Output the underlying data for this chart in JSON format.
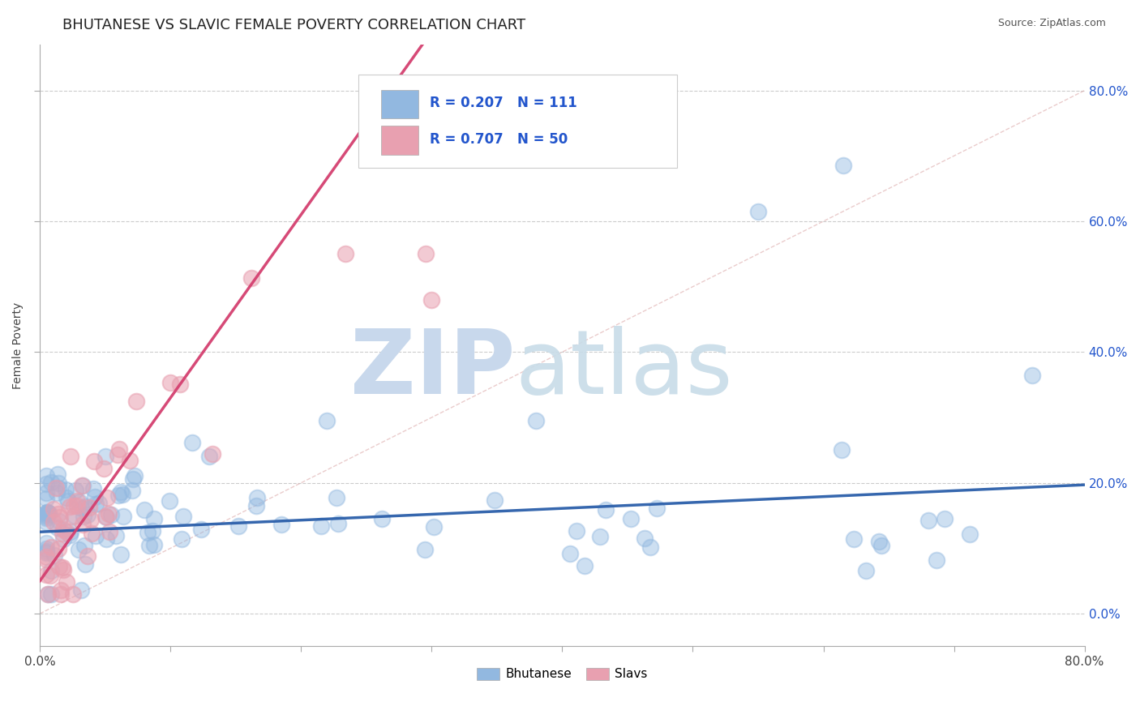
{
  "title": "BHUTANESE VS SLAVIC FEMALE POVERTY CORRELATION CHART",
  "source": "Source: ZipAtlas.com",
  "ylabel": "Female Poverty",
  "xlim": [
    0.0,
    0.8
  ],
  "ylim": [
    -0.05,
    0.87
  ],
  "x_ticks": [
    0.0,
    0.1,
    0.2,
    0.3,
    0.4,
    0.5,
    0.6,
    0.7,
    0.8
  ],
  "x_tick_labels": [
    "0.0%",
    "",
    "",
    "",
    "",
    "",
    "",
    "",
    "80.0%"
  ],
  "y_ticks_right": [
    0.0,
    0.2,
    0.4,
    0.6,
    0.8
  ],
  "y_tick_labels_right": [
    "0.0%",
    "20.0%",
    "40.0%",
    "60.0%",
    "80.0%"
  ],
  "bhutanese_R": 0.207,
  "bhutanese_N": 111,
  "slavic_R": 0.707,
  "slavic_N": 50,
  "blue_color": "#92b8e0",
  "pink_color": "#e8a0b0",
  "trend_blue": "#2b5faa",
  "trend_pink": "#d44070",
  "diagonal_color": "#ccbbbb",
  "background_color": "#ffffff",
  "grid_color": "#cccccc",
  "title_fontsize": 13,
  "legend_color": "#2255cc"
}
